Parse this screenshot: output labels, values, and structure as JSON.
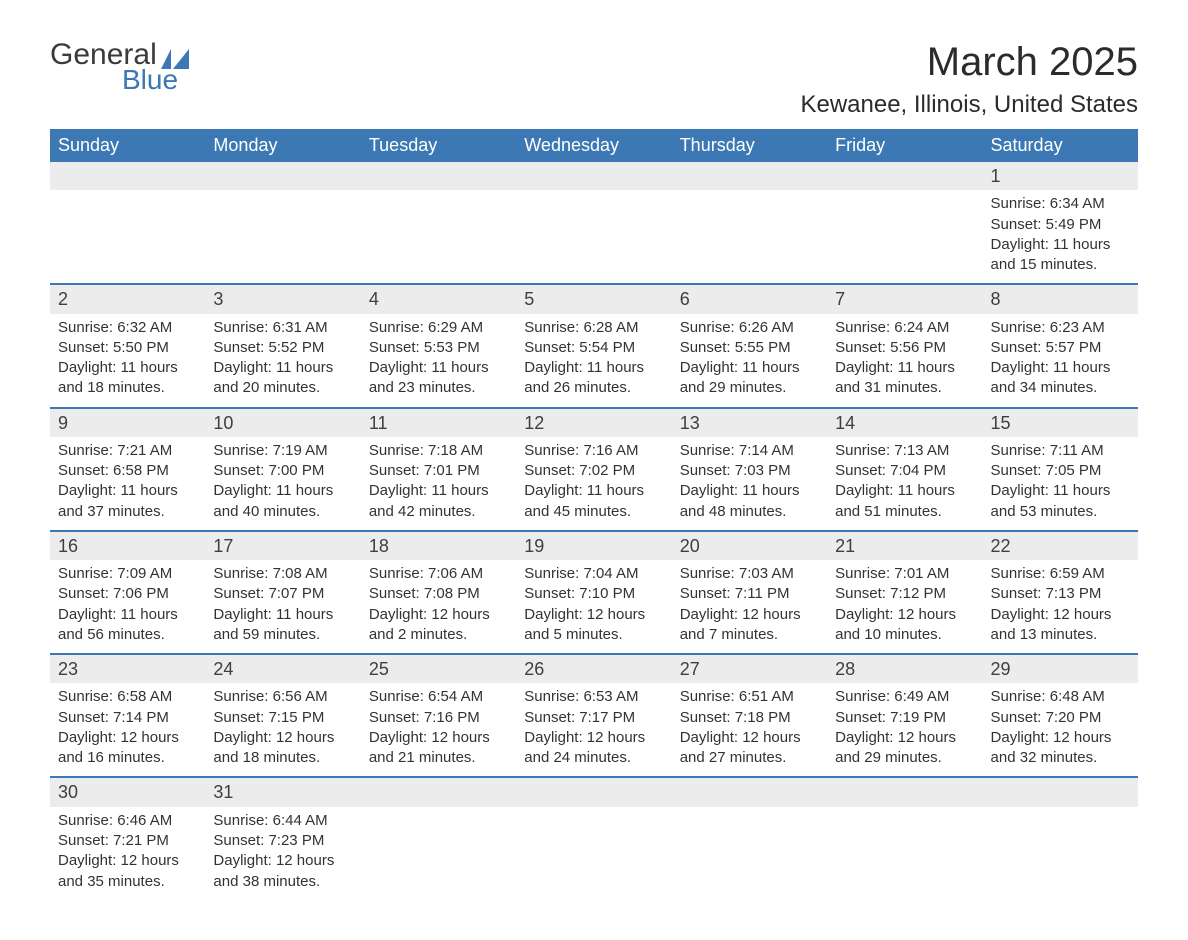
{
  "logo": {
    "text1": "General",
    "text2": "Blue",
    "brand_color": "#3c78b4"
  },
  "header": {
    "month_title": "March 2025",
    "location": "Kewanee, Illinois, United States"
  },
  "colors": {
    "header_bg": "#3c78b4",
    "header_text": "#ffffff",
    "daynum_bg": "#ececec",
    "row_divider": "#3c78b4",
    "body_text": "#333333",
    "page_bg": "#ffffff"
  },
  "typography": {
    "month_title_pt": 40,
    "location_pt": 24,
    "weekday_pt": 18,
    "daynum_pt": 18,
    "cell_pt": 15
  },
  "weekdays": [
    "Sunday",
    "Monday",
    "Tuesday",
    "Wednesday",
    "Thursday",
    "Friday",
    "Saturday"
  ],
  "weeks": [
    [
      null,
      null,
      null,
      null,
      null,
      null,
      {
        "day": "1",
        "sunrise": "Sunrise: 6:34 AM",
        "sunset": "Sunset: 5:49 PM",
        "daylight1": "Daylight: 11 hours",
        "daylight2": "and 15 minutes."
      }
    ],
    [
      {
        "day": "2",
        "sunrise": "Sunrise: 6:32 AM",
        "sunset": "Sunset: 5:50 PM",
        "daylight1": "Daylight: 11 hours",
        "daylight2": "and 18 minutes."
      },
      {
        "day": "3",
        "sunrise": "Sunrise: 6:31 AM",
        "sunset": "Sunset: 5:52 PM",
        "daylight1": "Daylight: 11 hours",
        "daylight2": "and 20 minutes."
      },
      {
        "day": "4",
        "sunrise": "Sunrise: 6:29 AM",
        "sunset": "Sunset: 5:53 PM",
        "daylight1": "Daylight: 11 hours",
        "daylight2": "and 23 minutes."
      },
      {
        "day": "5",
        "sunrise": "Sunrise: 6:28 AM",
        "sunset": "Sunset: 5:54 PM",
        "daylight1": "Daylight: 11 hours",
        "daylight2": "and 26 minutes."
      },
      {
        "day": "6",
        "sunrise": "Sunrise: 6:26 AM",
        "sunset": "Sunset: 5:55 PM",
        "daylight1": "Daylight: 11 hours",
        "daylight2": "and 29 minutes."
      },
      {
        "day": "7",
        "sunrise": "Sunrise: 6:24 AM",
        "sunset": "Sunset: 5:56 PM",
        "daylight1": "Daylight: 11 hours",
        "daylight2": "and 31 minutes."
      },
      {
        "day": "8",
        "sunrise": "Sunrise: 6:23 AM",
        "sunset": "Sunset: 5:57 PM",
        "daylight1": "Daylight: 11 hours",
        "daylight2": "and 34 minutes."
      }
    ],
    [
      {
        "day": "9",
        "sunrise": "Sunrise: 7:21 AM",
        "sunset": "Sunset: 6:58 PM",
        "daylight1": "Daylight: 11 hours",
        "daylight2": "and 37 minutes."
      },
      {
        "day": "10",
        "sunrise": "Sunrise: 7:19 AM",
        "sunset": "Sunset: 7:00 PM",
        "daylight1": "Daylight: 11 hours",
        "daylight2": "and 40 minutes."
      },
      {
        "day": "11",
        "sunrise": "Sunrise: 7:18 AM",
        "sunset": "Sunset: 7:01 PM",
        "daylight1": "Daylight: 11 hours",
        "daylight2": "and 42 minutes."
      },
      {
        "day": "12",
        "sunrise": "Sunrise: 7:16 AM",
        "sunset": "Sunset: 7:02 PM",
        "daylight1": "Daylight: 11 hours",
        "daylight2": "and 45 minutes."
      },
      {
        "day": "13",
        "sunrise": "Sunrise: 7:14 AM",
        "sunset": "Sunset: 7:03 PM",
        "daylight1": "Daylight: 11 hours",
        "daylight2": "and 48 minutes."
      },
      {
        "day": "14",
        "sunrise": "Sunrise: 7:13 AM",
        "sunset": "Sunset: 7:04 PM",
        "daylight1": "Daylight: 11 hours",
        "daylight2": "and 51 minutes."
      },
      {
        "day": "15",
        "sunrise": "Sunrise: 7:11 AM",
        "sunset": "Sunset: 7:05 PM",
        "daylight1": "Daylight: 11 hours",
        "daylight2": "and 53 minutes."
      }
    ],
    [
      {
        "day": "16",
        "sunrise": "Sunrise: 7:09 AM",
        "sunset": "Sunset: 7:06 PM",
        "daylight1": "Daylight: 11 hours",
        "daylight2": "and 56 minutes."
      },
      {
        "day": "17",
        "sunrise": "Sunrise: 7:08 AM",
        "sunset": "Sunset: 7:07 PM",
        "daylight1": "Daylight: 11 hours",
        "daylight2": "and 59 minutes."
      },
      {
        "day": "18",
        "sunrise": "Sunrise: 7:06 AM",
        "sunset": "Sunset: 7:08 PM",
        "daylight1": "Daylight: 12 hours",
        "daylight2": "and 2 minutes."
      },
      {
        "day": "19",
        "sunrise": "Sunrise: 7:04 AM",
        "sunset": "Sunset: 7:10 PM",
        "daylight1": "Daylight: 12 hours",
        "daylight2": "and 5 minutes."
      },
      {
        "day": "20",
        "sunrise": "Sunrise: 7:03 AM",
        "sunset": "Sunset: 7:11 PM",
        "daylight1": "Daylight: 12 hours",
        "daylight2": "and 7 minutes."
      },
      {
        "day": "21",
        "sunrise": "Sunrise: 7:01 AM",
        "sunset": "Sunset: 7:12 PM",
        "daylight1": "Daylight: 12 hours",
        "daylight2": "and 10 minutes."
      },
      {
        "day": "22",
        "sunrise": "Sunrise: 6:59 AM",
        "sunset": "Sunset: 7:13 PM",
        "daylight1": "Daylight: 12 hours",
        "daylight2": "and 13 minutes."
      }
    ],
    [
      {
        "day": "23",
        "sunrise": "Sunrise: 6:58 AM",
        "sunset": "Sunset: 7:14 PM",
        "daylight1": "Daylight: 12 hours",
        "daylight2": "and 16 minutes."
      },
      {
        "day": "24",
        "sunrise": "Sunrise: 6:56 AM",
        "sunset": "Sunset: 7:15 PM",
        "daylight1": "Daylight: 12 hours",
        "daylight2": "and 18 minutes."
      },
      {
        "day": "25",
        "sunrise": "Sunrise: 6:54 AM",
        "sunset": "Sunset: 7:16 PM",
        "daylight1": "Daylight: 12 hours",
        "daylight2": "and 21 minutes."
      },
      {
        "day": "26",
        "sunrise": "Sunrise: 6:53 AM",
        "sunset": "Sunset: 7:17 PM",
        "daylight1": "Daylight: 12 hours",
        "daylight2": "and 24 minutes."
      },
      {
        "day": "27",
        "sunrise": "Sunrise: 6:51 AM",
        "sunset": "Sunset: 7:18 PM",
        "daylight1": "Daylight: 12 hours",
        "daylight2": "and 27 minutes."
      },
      {
        "day": "28",
        "sunrise": "Sunrise: 6:49 AM",
        "sunset": "Sunset: 7:19 PM",
        "daylight1": "Daylight: 12 hours",
        "daylight2": "and 29 minutes."
      },
      {
        "day": "29",
        "sunrise": "Sunrise: 6:48 AM",
        "sunset": "Sunset: 7:20 PM",
        "daylight1": "Daylight: 12 hours",
        "daylight2": "and 32 minutes."
      }
    ],
    [
      {
        "day": "30",
        "sunrise": "Sunrise: 6:46 AM",
        "sunset": "Sunset: 7:21 PM",
        "daylight1": "Daylight: 12 hours",
        "daylight2": "and 35 minutes."
      },
      {
        "day": "31",
        "sunrise": "Sunrise: 6:44 AM",
        "sunset": "Sunset: 7:23 PM",
        "daylight1": "Daylight: 12 hours",
        "daylight2": "and 38 minutes."
      },
      null,
      null,
      null,
      null,
      null
    ]
  ]
}
